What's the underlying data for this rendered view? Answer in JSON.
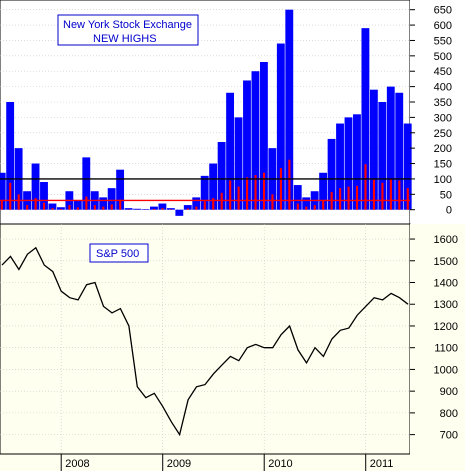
{
  "chart_data": [
    {
      "type": "bar",
      "title": "New York Stock Exchange",
      "subtitle": "NEW HIGHS",
      "yticks": [
        0,
        50,
        100,
        150,
        200,
        250,
        300,
        350,
        400,
        450,
        500,
        550,
        600,
        650
      ],
      "ylim": [
        -40,
        675
      ],
      "reference_lines": [
        100,
        30
      ],
      "grid": true,
      "colors": {
        "bars": "#0000ff",
        "spikes": "#ff0000",
        "reference": "#000000",
        "background": "#ffffff",
        "title_box": "#0000cc"
      },
      "series": [
        {
          "x": [
            "2007-06",
            "2007-07",
            "2007-08",
            "2007-09",
            "2007-10",
            "2007-11",
            "2007-12",
            "2008-01",
            "2008-02",
            "2008-03",
            "2008-04",
            "2008-05",
            "2008-06",
            "2008-07",
            "2008-08",
            "2008-09",
            "2008-10",
            "2008-11",
            "2008-12",
            "2009-01",
            "2009-02",
            "2009-03",
            "2009-04",
            "2009-05",
            "2009-06",
            "2009-07",
            "2009-08",
            "2009-09",
            "2009-10",
            "2009-11",
            "2009-12",
            "2010-01",
            "2010-02",
            "2010-03",
            "2010-04",
            "2010-05",
            "2010-06",
            "2010-07",
            "2010-08",
            "2010-09",
            "2010-10",
            "2010-11",
            "2010-12",
            "2011-01",
            "2011-02",
            "2011-03",
            "2011-04",
            "2011-05",
            "2011-06"
          ],
          "values": [
            120,
            350,
            200,
            60,
            150,
            90,
            20,
            8,
            60,
            30,
            170,
            60,
            40,
            70,
            130,
            5,
            3,
            2,
            10,
            20,
            5,
            -20,
            15,
            40,
            110,
            150,
            220,
            380,
            300,
            420,
            450,
            480,
            200,
            540,
            650,
            80,
            40,
            60,
            120,
            230,
            280,
            300,
            310,
            590,
            390,
            350,
            400,
            380,
            280
          ]
        }
      ]
    },
    {
      "type": "line",
      "title": "S&P 500",
      "xticks": [
        "2008",
        "2009",
        "2010",
        "2011"
      ],
      "yticks": [
        700,
        800,
        900,
        1000,
        1100,
        1200,
        1300,
        1400,
        1500,
        1600
      ],
      "ylim": [
        620,
        1660
      ],
      "grid": true,
      "colors": {
        "line": "#000000",
        "title_box": "#0000cc",
        "background": "#fffff0"
      },
      "series": [
        {
          "x": [
            "2007-06",
            "2007-07",
            "2007-08",
            "2007-09",
            "2007-10",
            "2007-11",
            "2007-12",
            "2008-01",
            "2008-02",
            "2008-03",
            "2008-04",
            "2008-05",
            "2008-06",
            "2008-07",
            "2008-08",
            "2008-09",
            "2008-10",
            "2008-11",
            "2008-12",
            "2009-01",
            "2009-02",
            "2009-03",
            "2009-04",
            "2009-05",
            "2009-06",
            "2009-07",
            "2009-08",
            "2009-09",
            "2009-10",
            "2009-11",
            "2009-12",
            "2010-01",
            "2010-02",
            "2010-03",
            "2010-04",
            "2010-05",
            "2010-06",
            "2010-07",
            "2010-08",
            "2010-09",
            "2010-10",
            "2010-11",
            "2010-12",
            "2011-01",
            "2011-02",
            "2011-03",
            "2011-04",
            "2011-05",
            "2011-06"
          ],
          "values": [
            1480,
            1520,
            1460,
            1530,
            1560,
            1480,
            1450,
            1360,
            1330,
            1320,
            1390,
            1400,
            1290,
            1260,
            1280,
            1200,
            920,
            870,
            890,
            830,
            760,
            700,
            860,
            920,
            930,
            980,
            1020,
            1060,
            1040,
            1100,
            1115,
            1100,
            1100,
            1160,
            1200,
            1090,
            1030,
            1100,
            1060,
            1140,
            1180,
            1190,
            1250,
            1290,
            1330,
            1320,
            1350,
            1330,
            1300
          ]
        }
      ]
    }
  ]
}
